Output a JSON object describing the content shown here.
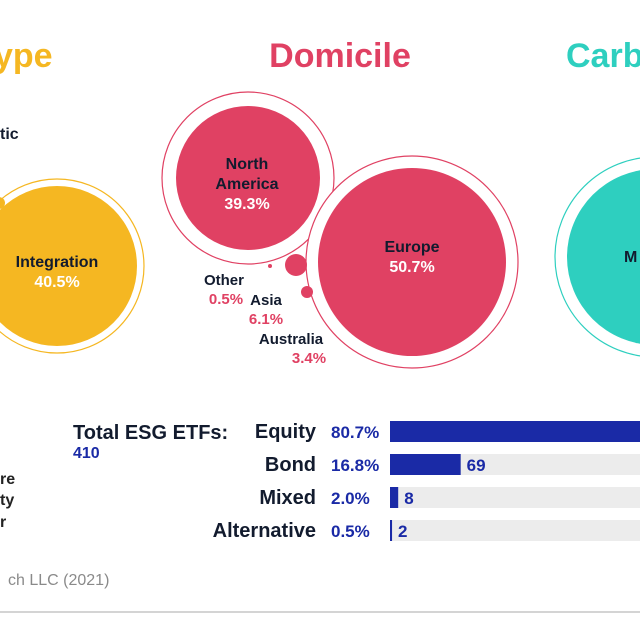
{
  "colors": {
    "type": "#f5b722",
    "domicile": "#e04163",
    "carbon": "#2ecfbf",
    "navy": "#121b2e",
    "bar_blue": "#1a2aa6",
    "track": "#ececec",
    "muted": "#8a8a8a"
  },
  "chart_data": [
    {
      "type": "bubble",
      "title": "ype",
      "slices": [
        {
          "name": "tic",
          "value": null
        },
        {
          "name": "Integration",
          "value": 40.5,
          "label": "40.5%"
        }
      ]
    },
    {
      "type": "bubble",
      "title": "Domicile",
      "slices": [
        {
          "name": "North America",
          "value": 39.3,
          "label": "39.3%"
        },
        {
          "name": "Europe",
          "value": 50.7,
          "label": "50.7%"
        },
        {
          "name": "Other",
          "value": 0.5,
          "label": "0.5%"
        },
        {
          "name": "Asia",
          "value": 6.1,
          "label": "6.1%"
        },
        {
          "name": "Australia",
          "value": 3.4,
          "label": "3.4%"
        }
      ]
    },
    {
      "type": "bubble",
      "title": "Carb",
      "slices": [
        {
          "name": "M",
          "value": null
        }
      ]
    },
    {
      "type": "bar",
      "title": "Total ESG ETFs:",
      "total": "410",
      "categories": [
        "Equity",
        "Bond",
        "Mixed",
        "Alternative"
      ],
      "pct_labels": [
        "80.7%",
        "16.8%",
        "2.0%",
        "0.5%"
      ],
      "values": [
        331,
        69,
        8,
        2
      ],
      "value_labels": [
        "",
        "69",
        "8",
        "2"
      ],
      "xlim": [
        0,
        410
      ]
    }
  ],
  "left_fragments": [
    "re",
    "ty",
    "r"
  ],
  "source_text": "ch LLC (2021)"
}
